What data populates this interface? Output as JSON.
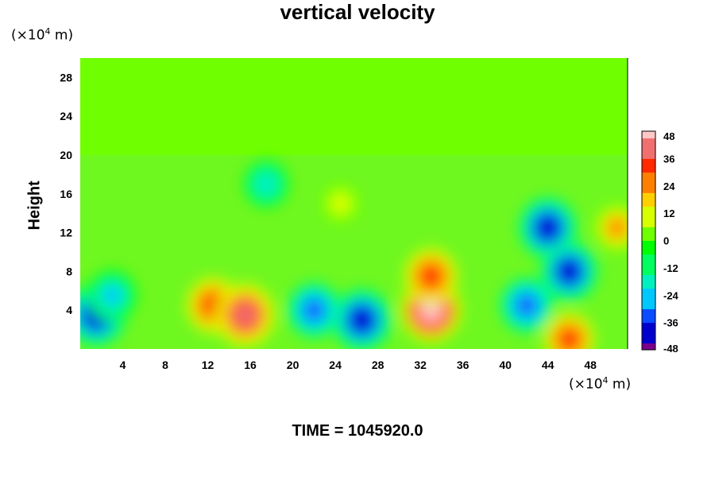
{
  "chart_data": {
    "type": "heatmap",
    "title": "vertical velocity",
    "ylabel": "Height",
    "xlabel": "",
    "y_unit": {
      "prefix": "(×10",
      "exp": "4",
      "suffix": " m)"
    },
    "x_unit": {
      "prefix": "(×10",
      "exp": "4",
      "suffix": " m)"
    },
    "xlim": [
      0,
      51.5
    ],
    "ylim": [
      0,
      30
    ],
    "xticks": [
      4,
      8,
      12,
      16,
      20,
      24,
      28,
      32,
      36,
      40,
      44,
      48
    ],
    "yticks": [
      4,
      8,
      12,
      16,
      20,
      24,
      28
    ],
    "colorbar": {
      "ticks": [
        48,
        36,
        24,
        12,
        0,
        -12,
        -24,
        -36,
        -48
      ],
      "range": [
        -48,
        48
      ],
      "stops": [
        "#7a008c",
        "#0000cd",
        "#0a4cff",
        "#00c8ff",
        "#00f0c0",
        "#00ff60",
        "#00ff00",
        "#70ff00",
        "#d8ff00",
        "#ffd000",
        "#ff8000",
        "#ff2a00",
        "#f07070",
        "#ffc8c8"
      ]
    },
    "features": [
      {
        "x": 1.5,
        "y": 3.5,
        "value": -44
      },
      {
        "x": 3,
        "y": 5.5,
        "value": -28
      },
      {
        "x": 12.5,
        "y": 4.5,
        "value": 34
      },
      {
        "x": 15.5,
        "y": 3.5,
        "value": 44
      },
      {
        "x": 17.5,
        "y": 17,
        "value": -22
      },
      {
        "x": 22,
        "y": 4,
        "value": -34
      },
      {
        "x": 26.5,
        "y": 3,
        "value": -44
      },
      {
        "x": 24.5,
        "y": 15,
        "value": 14
      },
      {
        "x": 33,
        "y": 4,
        "value": 46
      },
      {
        "x": 33,
        "y": 7.5,
        "value": 34
      },
      {
        "x": 42,
        "y": 4.5,
        "value": -34
      },
      {
        "x": 44,
        "y": 12.5,
        "value": -42
      },
      {
        "x": 46,
        "y": 8,
        "value": -40
      },
      {
        "x": 46,
        "y": 1,
        "value": 30
      },
      {
        "x": 50.5,
        "y": 12.5,
        "value": 24
      }
    ]
  },
  "footer": "TIME = 1045920.0"
}
